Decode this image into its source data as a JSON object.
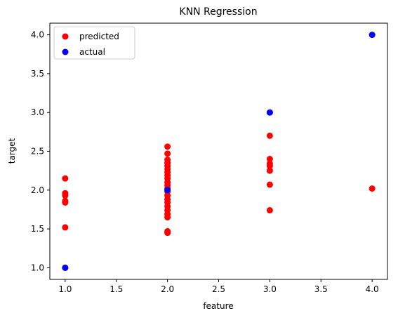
{
  "chart_data": {
    "type": "scatter",
    "title": "KNN Regression",
    "xlabel": "feature",
    "ylabel": "target",
    "xlim": [
      0.85,
      4.15
    ],
    "ylim": [
      0.85,
      4.15
    ],
    "xticks": [
      1.0,
      1.5,
      2.0,
      2.5,
      3.0,
      3.5,
      4.0
    ],
    "yticks": [
      1.0,
      1.5,
      2.0,
      2.5,
      3.0,
      3.5,
      4.0
    ],
    "xtick_labels": [
      "1.0",
      "1.5",
      "2.0",
      "2.5",
      "3.0",
      "3.5",
      "4.0"
    ],
    "ytick_labels": [
      "1.0",
      "1.5",
      "2.0",
      "2.5",
      "3.0",
      "3.5",
      "4.0"
    ],
    "grid": false,
    "legend_position": "top-left",
    "series": [
      {
        "name": "predicted",
        "color": "#ff0000",
        "points": [
          [
            1,
            2.15
          ],
          [
            1,
            1.96
          ],
          [
            1,
            1.93
          ],
          [
            1,
            1.86
          ],
          [
            1,
            1.84
          ],
          [
            1,
            1.52
          ],
          [
            1,
            1.0
          ],
          [
            2,
            2.56
          ],
          [
            2,
            2.47
          ],
          [
            2,
            2.39
          ],
          [
            2,
            2.35
          ],
          [
            2,
            2.31
          ],
          [
            2,
            2.27
          ],
          [
            2,
            2.23
          ],
          [
            2,
            2.19
          ],
          [
            2,
            2.15
          ],
          [
            2,
            2.1
          ],
          [
            2,
            2.06
          ],
          [
            2,
            2.02
          ],
          [
            2,
            1.98
          ],
          [
            2,
            1.93
          ],
          [
            2,
            1.88
          ],
          [
            2,
            1.84
          ],
          [
            2,
            1.79
          ],
          [
            2,
            1.74
          ],
          [
            2,
            1.69
          ],
          [
            2,
            1.65
          ],
          [
            2,
            1.47
          ],
          [
            2,
            1.45
          ],
          [
            3,
            3.0
          ],
          [
            3,
            2.7
          ],
          [
            3,
            2.4
          ],
          [
            3,
            2.34
          ],
          [
            3,
            2.31
          ],
          [
            3,
            2.25
          ],
          [
            3,
            2.07
          ],
          [
            3,
            1.74
          ],
          [
            4,
            2.02
          ]
        ]
      },
      {
        "name": "actual",
        "color": "#0000ff",
        "points": [
          [
            1,
            1.0
          ],
          [
            2,
            2.0
          ],
          [
            3,
            3.0
          ],
          [
            4,
            4.0
          ]
        ]
      }
    ]
  }
}
